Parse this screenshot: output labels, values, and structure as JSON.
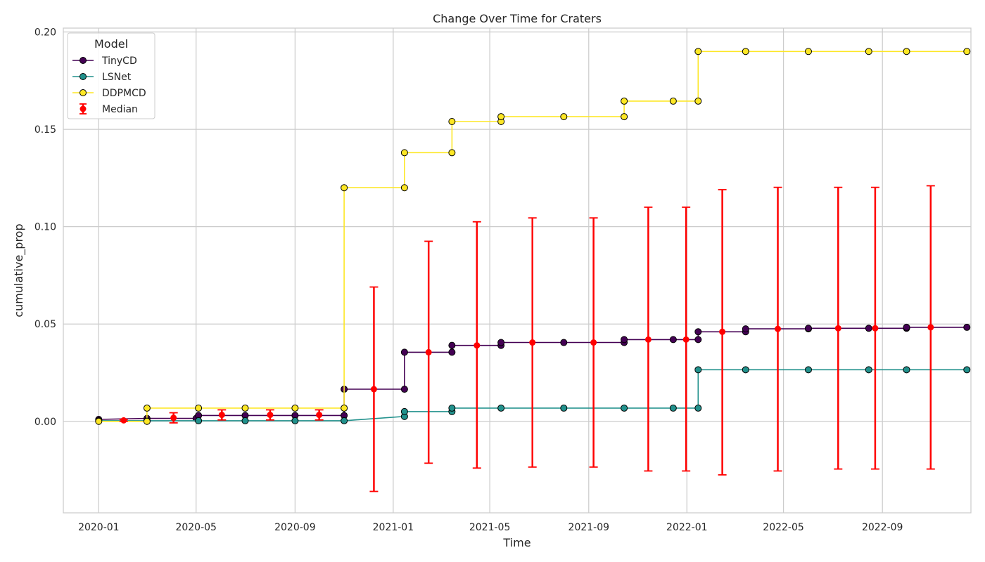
{
  "chart_data": {
    "type": "line",
    "title": "Change Over Time for Craters",
    "xlabel": "Time",
    "ylabel": "cumulative_prop",
    "xlim": [
      "2019-11-18",
      "2022-12-20"
    ],
    "ylim": [
      -0.047,
      0.202
    ],
    "xticks": [
      "2020-01",
      "2020-05",
      "2020-09",
      "2021-01",
      "2021-05",
      "2021-09",
      "2022-01",
      "2022-05",
      "2022-09"
    ],
    "yticks": [
      "0.00",
      "0.05",
      "0.10",
      "0.15",
      "0.20"
    ],
    "grid": true,
    "legend": {
      "title": "Model",
      "placement": "top-left"
    },
    "series": [
      {
        "name": "TinyCD",
        "color": "#440154",
        "points": [
          [
            "2020-01-01",
            0.001
          ],
          [
            "2020-03-01",
            0.0015
          ],
          [
            "2020-05-01",
            0.0015
          ],
          [
            "2020-05-04",
            0.003
          ],
          [
            "2020-07-01",
            0.003
          ],
          [
            "2020-09-01",
            0.003
          ],
          [
            "2020-11-01",
            0.003
          ],
          [
            "2020-11-01",
            0.0165
          ],
          [
            "2021-01-15",
            0.0165
          ],
          [
            "2021-01-15",
            0.0355
          ],
          [
            "2021-03-15",
            0.0355
          ],
          [
            "2021-03-15",
            0.039
          ],
          [
            "2021-05-15",
            0.039
          ],
          [
            "2021-05-15",
            0.0405
          ],
          [
            "2021-08-01",
            0.0405
          ],
          [
            "2021-10-15",
            0.0405
          ],
          [
            "2021-10-15",
            0.042
          ],
          [
            "2021-12-15",
            0.042
          ],
          [
            "2022-01-15",
            0.042
          ],
          [
            "2022-01-15",
            0.046
          ],
          [
            "2022-03-15",
            0.046
          ],
          [
            "2022-03-15",
            0.0475
          ],
          [
            "2022-06-01",
            0.0475
          ],
          [
            "2022-06-01",
            0.0478
          ],
          [
            "2022-08-15",
            0.0478
          ],
          [
            "2022-10-01",
            0.0478
          ],
          [
            "2022-10-01",
            0.0483
          ],
          [
            "2022-12-15",
            0.0483
          ]
        ]
      },
      {
        "name": "LSNet",
        "color": "#21918c",
        "points": [
          [
            "2020-01-01",
            0.0003
          ],
          [
            "2020-03-01",
            0.0003
          ],
          [
            "2020-05-04",
            0.0003
          ],
          [
            "2020-07-01",
            0.0003
          ],
          [
            "2020-09-01",
            0.0003
          ],
          [
            "2020-11-01",
            0.0003
          ],
          [
            "2021-01-15",
            0.0025
          ],
          [
            "2021-01-15",
            0.005
          ],
          [
            "2021-03-15",
            0.005
          ],
          [
            "2021-03-15",
            0.0068
          ],
          [
            "2021-05-15",
            0.0068
          ],
          [
            "2021-08-01",
            0.0068
          ],
          [
            "2021-10-15",
            0.0068
          ],
          [
            "2021-12-15",
            0.0068
          ],
          [
            "2022-01-15",
            0.0068
          ],
          [
            "2022-01-15",
            0.0265
          ],
          [
            "2022-03-15",
            0.0265
          ],
          [
            "2022-06-01",
            0.0265
          ],
          [
            "2022-08-15",
            0.0265
          ],
          [
            "2022-10-01",
            0.0265
          ],
          [
            "2022-12-15",
            0.0265
          ]
        ]
      },
      {
        "name": "DDPMCD",
        "color": "#fde725",
        "points": [
          [
            "2020-01-01",
            0.0
          ],
          [
            "2020-03-01",
            0.0
          ],
          [
            "2020-03-01",
            0.0068
          ],
          [
            "2020-05-04",
            0.0068
          ],
          [
            "2020-07-01",
            0.0068
          ],
          [
            "2020-09-01",
            0.0068
          ],
          [
            "2020-11-01",
            0.0068
          ],
          [
            "2020-11-01",
            0.12
          ],
          [
            "2021-01-15",
            0.12
          ],
          [
            "2021-01-15",
            0.138
          ],
          [
            "2021-03-15",
            0.138
          ],
          [
            "2021-03-15",
            0.154
          ],
          [
            "2021-05-15",
            0.154
          ],
          [
            "2021-05-15",
            0.1565
          ],
          [
            "2021-08-01",
            0.1565
          ],
          [
            "2021-10-15",
            0.1565
          ],
          [
            "2021-10-15",
            0.1645
          ],
          [
            "2021-12-15",
            0.1645
          ],
          [
            "2022-01-15",
            0.1645
          ],
          [
            "2022-01-15",
            0.19
          ],
          [
            "2022-03-15",
            0.19
          ],
          [
            "2022-06-01",
            0.19
          ],
          [
            "2022-08-15",
            0.19
          ],
          [
            "2022-10-01",
            0.19
          ],
          [
            "2022-12-15",
            0.19
          ]
        ]
      }
    ],
    "median": {
      "name": "Median",
      "color": "#ff0000",
      "points": [
        {
          "x": "2020-02-01",
          "y": 0.0005,
          "lo": 0.0,
          "hi": 0.001
        },
        {
          "x": "2020-04-03",
          "y": 0.0018,
          "lo": -0.0008,
          "hi": 0.0044
        },
        {
          "x": "2020-06-02",
          "y": 0.0033,
          "lo": 0.0007,
          "hi": 0.0059
        },
        {
          "x": "2020-08-01",
          "y": 0.0033,
          "lo": 0.0007,
          "hi": 0.0059
        },
        {
          "x": "2020-10-01",
          "y": 0.0033,
          "lo": 0.0007,
          "hi": 0.0059
        },
        {
          "x": "2020-12-08",
          "y": 0.0165,
          "lo": -0.036,
          "hi": 0.069
        },
        {
          "x": "2021-02-14",
          "y": 0.0355,
          "lo": -0.0215,
          "hi": 0.0925
        },
        {
          "x": "2021-04-15",
          "y": 0.039,
          "lo": -0.024,
          "hi": 0.1025
        },
        {
          "x": "2021-06-23",
          "y": 0.0405,
          "lo": -0.0235,
          "hi": 0.1045
        },
        {
          "x": "2021-09-07",
          "y": 0.0405,
          "lo": -0.0235,
          "hi": 0.1045
        },
        {
          "x": "2021-11-14",
          "y": 0.042,
          "lo": -0.0255,
          "hi": 0.11
        },
        {
          "x": "2021-12-31",
          "y": 0.042,
          "lo": -0.0255,
          "hi": 0.11
        },
        {
          "x": "2022-02-14",
          "y": 0.046,
          "lo": -0.0275,
          "hi": 0.119
        },
        {
          "x": "2022-04-24",
          "y": 0.0475,
          "lo": -0.0255,
          "hi": 0.1202
        },
        {
          "x": "2022-07-08",
          "y": 0.0478,
          "lo": -0.0245,
          "hi": 0.1202
        },
        {
          "x": "2022-08-23",
          "y": 0.0478,
          "lo": -0.0245,
          "hi": 0.1202
        },
        {
          "x": "2022-10-31",
          "y": 0.0483,
          "lo": -0.0245,
          "hi": 0.121
        }
      ]
    }
  }
}
